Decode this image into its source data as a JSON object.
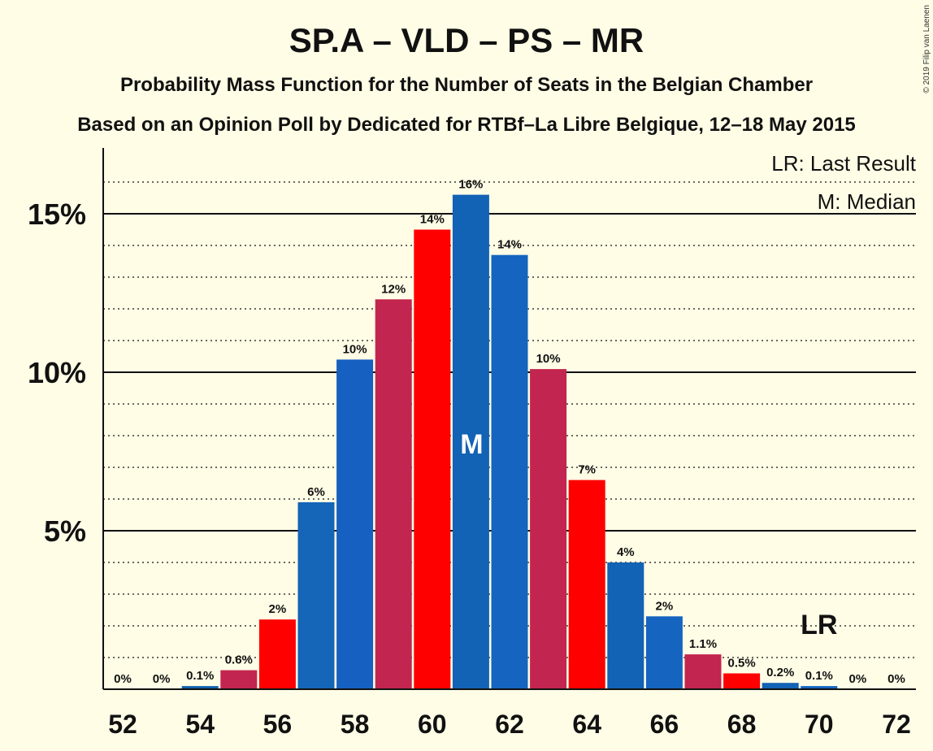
{
  "chart_data": {
    "type": "bar",
    "title": "SP.A – VLD – PS – MR",
    "subtitle": "Probability Mass Function for the Number of Seats in the Belgian Chamber",
    "subtitle2": "Based on an Opinion Poll by Dedicated for RTBf–La Libre Belgique, 12–18 May 2015",
    "copyright": "© 2019 Filip van Laenen",
    "legend": {
      "lr": "LR: Last Result",
      "median": "M: Median",
      "position": "top-right"
    },
    "x": [
      52,
      53,
      54,
      55,
      56,
      57,
      58,
      59,
      60,
      61,
      62,
      63,
      64,
      65,
      66,
      67,
      68,
      69,
      70,
      71,
      72
    ],
    "values": [
      0,
      0,
      0.1,
      0.6,
      2.2,
      5.9,
      10.4,
      12.3,
      14.5,
      15.6,
      13.7,
      10.1,
      6.6,
      4.0,
      2.3,
      1.1,
      0.5,
      0.2,
      0.1,
      0,
      0
    ],
    "labels": [
      "0%",
      "0%",
      "0.1%",
      "0.6%",
      "2%",
      "6%",
      "10%",
      "12%",
      "14%",
      "16%",
      "14%",
      "10%",
      "7%",
      "4%",
      "2%",
      "1.1%",
      "0.5%",
      "0.2%",
      "0.1%",
      "0%",
      "0%"
    ],
    "colors": [
      "#1060B0",
      "#1565C0",
      "#1060B0",
      "#C2254F",
      "#FF0000",
      "#1565B8",
      "#1560C0",
      "#C2254F",
      "#FF0000",
      "#1262B5",
      "#1565C0",
      "#C2254F",
      "#FF0000",
      "#1262B5",
      "#1565C0",
      "#C2254F",
      "#FF0000",
      "#1262B5",
      "#1565C0",
      "#C2254F",
      "#FF0000"
    ],
    "xticks": [
      "52",
      "54",
      "56",
      "58",
      "60",
      "62",
      "64",
      "66",
      "68",
      "70",
      "72"
    ],
    "yticks": [
      {
        "v": 5,
        "label": "5%"
      },
      {
        "v": 10,
        "label": "10%"
      },
      {
        "v": 15,
        "label": "15%"
      }
    ],
    "ylim": [
      0,
      17
    ],
    "ylabel": "",
    "xlabel": "",
    "median_seat": 61,
    "median_label": "M",
    "last_result_seat": 70,
    "last_result_label": "LR",
    "grid": "dotted minor every 1%, solid major every 5%"
  }
}
